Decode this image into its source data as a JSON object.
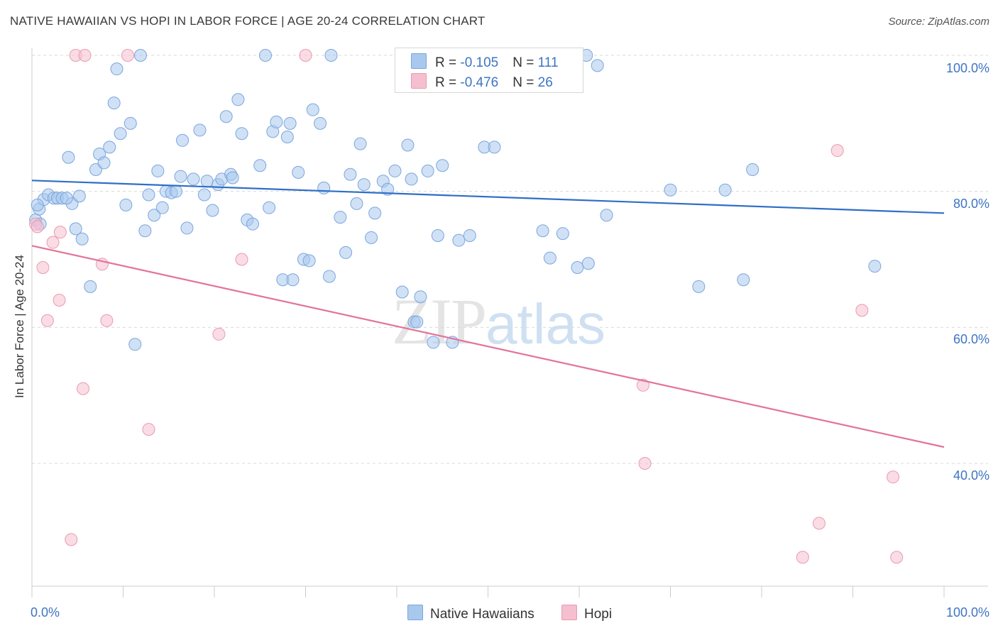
{
  "title": "NATIVE HAWAIIAN VS HOPI IN LABOR FORCE | AGE 20-24 CORRELATION CHART",
  "source": "Source: ZipAtlas.com",
  "watermark": {
    "zip": "ZIP",
    "atlas": "atlas"
  },
  "legend": {
    "rows": [
      {
        "r_label": "R = ",
        "r_value": "-0.105",
        "n_label": "N = ",
        "n_value": "111",
        "color": "#a9c8ee"
      },
      {
        "r_label": "R = ",
        "r_value": "-0.476",
        "n_label": "N = ",
        "n_value": "26",
        "color": "#f5bfcf"
      }
    ]
  },
  "bottom_legend": [
    {
      "label": "Native Hawaiians",
      "color": "#a9c8ee"
    },
    {
      "label": "Hopi",
      "color": "#f5bfcf"
    }
  ],
  "chart_data": {
    "type": "scatter",
    "title": "NATIVE HAWAIIAN VS HOPI IN LABOR FORCE | AGE 20-24 CORRELATION CHART",
    "xlabel": "",
    "ylabel": "In Labor Force | Age 20-24",
    "xlim": [
      0,
      100
    ],
    "ylim": [
      20,
      102
    ],
    "x_tick_labels": [
      "0.0%",
      "100.0%"
    ],
    "y_ticks": [
      40,
      60,
      80,
      100
    ],
    "y_tick_labels": [
      "40.0%",
      "60.0%",
      "80.0%",
      "100.0%"
    ],
    "grid": "horizontal-dashed",
    "legend_position": "top-center",
    "series": [
      {
        "name": "Native Hawaiians",
        "color": "#a9c8ee",
        "stroke": "#7aa6dc",
        "trend": {
          "x": [
            0,
            100
          ],
          "y": [
            81.6,
            76.8
          ],
          "color": "#2f6ec7"
        },
        "points": [
          [
            0.4,
            75.8
          ],
          [
            0.8,
            77.4
          ],
          [
            1.3,
            78.8
          ],
          [
            1.8,
            79.5
          ],
          [
            2.4,
            79.0
          ],
          [
            2.8,
            79.0
          ],
          [
            3.3,
            79.0
          ],
          [
            4.0,
            85.0
          ],
          [
            4.4,
            78.2
          ],
          [
            4.8,
            74.5
          ],
          [
            5.5,
            73.0
          ],
          [
            5.2,
            79.3
          ],
          [
            6.4,
            66.0
          ],
          [
            7.0,
            83.2
          ],
          [
            7.4,
            85.5
          ],
          [
            7.9,
            84.2
          ],
          [
            8.5,
            86.5
          ],
          [
            9.0,
            93.0
          ],
          [
            9.3,
            98.0
          ],
          [
            9.7,
            88.5
          ],
          [
            10.3,
            78.0
          ],
          [
            10.8,
            90.0
          ],
          [
            11.3,
            57.5
          ],
          [
            11.9,
            100.0
          ],
          [
            12.4,
            74.2
          ],
          [
            12.8,
            79.5
          ],
          [
            13.4,
            76.5
          ],
          [
            13.8,
            83.0
          ],
          [
            14.3,
            77.6
          ],
          [
            14.7,
            80.0
          ],
          [
            15.3,
            79.8
          ],
          [
            15.8,
            80.0
          ],
          [
            16.3,
            82.2
          ],
          [
            16.5,
            87.5
          ],
          [
            17.0,
            74.6
          ],
          [
            17.7,
            81.8
          ],
          [
            18.4,
            89.0
          ],
          [
            18.9,
            79.5
          ],
          [
            19.2,
            81.5
          ],
          [
            19.8,
            77.2
          ],
          [
            20.4,
            81.0
          ],
          [
            20.8,
            81.8
          ],
          [
            21.3,
            91.0
          ],
          [
            21.8,
            82.5
          ],
          [
            22.6,
            93.5
          ],
          [
            23.0,
            88.5
          ],
          [
            23.6,
            75.8
          ],
          [
            24.2,
            75.2
          ],
          [
            25.0,
            83.8
          ],
          [
            25.6,
            100.0
          ],
          [
            26.0,
            77.6
          ],
          [
            26.4,
            88.8
          ],
          [
            26.8,
            90.2
          ],
          [
            27.5,
            67.0
          ],
          [
            28.0,
            88.0
          ],
          [
            28.3,
            90.0
          ],
          [
            28.6,
            67.0
          ],
          [
            29.2,
            82.8
          ],
          [
            29.8,
            70.0
          ],
          [
            30.4,
            69.8
          ],
          [
            30.8,
            92.0
          ],
          [
            31.6,
            90.0
          ],
          [
            32.0,
            80.5
          ],
          [
            32.6,
            67.5
          ],
          [
            32.8,
            100.0
          ],
          [
            33.8,
            76.2
          ],
          [
            34.4,
            71.0
          ],
          [
            34.9,
            82.5
          ],
          [
            35.6,
            78.2
          ],
          [
            36.0,
            87.0
          ],
          [
            36.4,
            81.0
          ],
          [
            37.2,
            73.2
          ],
          [
            37.6,
            76.8
          ],
          [
            38.5,
            81.5
          ],
          [
            39.0,
            80.3
          ],
          [
            39.8,
            83.0
          ],
          [
            40.6,
            65.2
          ],
          [
            41.2,
            86.8
          ],
          [
            41.6,
            81.8
          ],
          [
            41.9,
            60.8
          ],
          [
            42.2,
            60.8
          ],
          [
            42.6,
            64.5
          ],
          [
            43.4,
            83.0
          ],
          [
            44.0,
            57.8
          ],
          [
            44.5,
            73.5
          ],
          [
            45.0,
            83.8
          ],
          [
            46.1,
            57.8
          ],
          [
            46.8,
            72.8
          ],
          [
            48.0,
            73.5
          ],
          [
            49.6,
            86.5
          ],
          [
            50.7,
            86.5
          ],
          [
            56.0,
            74.2
          ],
          [
            56.8,
            70.2
          ],
          [
            57.2,
            100.0
          ],
          [
            58.2,
            73.8
          ],
          [
            59.5,
            98.8
          ],
          [
            59.8,
            68.8
          ],
          [
            60.8,
            100.0
          ],
          [
            61.0,
            69.4
          ],
          [
            62.0,
            98.5
          ],
          [
            63.0,
            76.5
          ],
          [
            70.0,
            80.2
          ],
          [
            73.1,
            66.0
          ],
          [
            76.0,
            80.2
          ],
          [
            78.0,
            67.0
          ],
          [
            79.0,
            83.2
          ],
          [
            92.4,
            69.0
          ],
          [
            3.8,
            79.0
          ],
          [
            0.6,
            78.0
          ],
          [
            0.9,
            75.2
          ],
          [
            22.0,
            82.0
          ]
        ]
      },
      {
        "name": "Hopi",
        "color": "#f5bfcf",
        "stroke": "#ea9ab2",
        "trend": {
          "x": [
            0,
            100
          ],
          "y": [
            72.0,
            42.4
          ],
          "color": "#e2739a"
        },
        "points": [
          [
            0.4,
            75.2
          ],
          [
            0.6,
            74.8
          ],
          [
            1.2,
            68.8
          ],
          [
            1.7,
            61.0
          ],
          [
            2.3,
            72.5
          ],
          [
            3.0,
            64.0
          ],
          [
            3.1,
            74.0
          ],
          [
            4.3,
            28.8
          ],
          [
            4.8,
            100.0
          ],
          [
            5.8,
            100.0
          ],
          [
            5.6,
            51.0
          ],
          [
            7.7,
            69.3
          ],
          [
            8.2,
            61.0
          ],
          [
            10.5,
            100.0
          ],
          [
            12.8,
            45.0
          ],
          [
            20.5,
            59.0
          ],
          [
            23.0,
            70.0
          ],
          [
            30.0,
            100.0
          ],
          [
            67.0,
            51.5
          ],
          [
            67.2,
            40.0
          ],
          [
            88.3,
            86.0
          ],
          [
            86.3,
            31.2
          ],
          [
            91.0,
            62.5
          ],
          [
            94.4,
            38.0
          ],
          [
            84.5,
            26.2
          ],
          [
            94.8,
            26.2
          ]
        ]
      }
    ]
  }
}
